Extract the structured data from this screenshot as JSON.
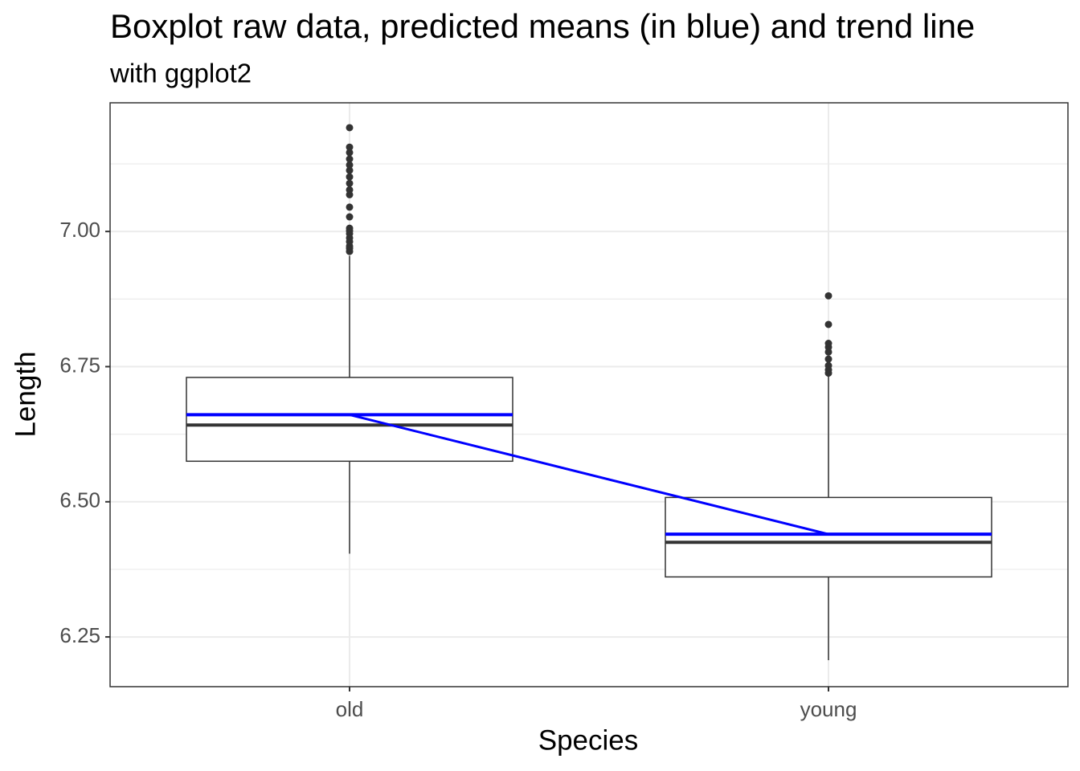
{
  "chart_data": {
    "type": "boxplot",
    "title": "Boxplot raw data, predicted means (in blue) and trend line",
    "subtitle": "with ggplot2",
    "x_label": "Species",
    "y_label": "Length",
    "categories": [
      "old",
      "young"
    ],
    "boxes": [
      {
        "whisker_low": 6.404,
        "q1": 6.575,
        "median": 6.642,
        "q3": 6.73,
        "whisker_high": 6.955,
        "outliers": [
          6.963,
          6.969,
          6.973,
          6.981,
          6.988,
          6.996,
          7.001,
          7.006,
          7.027,
          7.045,
          7.068,
          7.077,
          7.089,
          7.101,
          7.113,
          7.123,
          7.134,
          7.146,
          7.156,
          7.192
        ]
      },
      {
        "whisker_low": 6.207,
        "q1": 6.361,
        "median": 6.425,
        "q3": 6.508,
        "whisker_high": 6.737,
        "outliers": [
          6.738,
          6.744,
          6.752,
          6.764,
          6.777,
          6.786,
          6.793,
          6.828,
          6.881
        ]
      }
    ],
    "means": [
      6.661,
      6.44
    ],
    "mean_color": "#0000ff",
    "box_color": "#333333",
    "ylim": [
      6.158,
      7.238
    ],
    "yticks": [
      {
        "value": 6.25,
        "label": "6.25"
      },
      {
        "value": 6.5,
        "label": "6.50"
      },
      {
        "value": 6.75,
        "label": "6.75"
      },
      {
        "value": 7,
        "label": "7.00"
      }
    ],
    "grid": true
  }
}
